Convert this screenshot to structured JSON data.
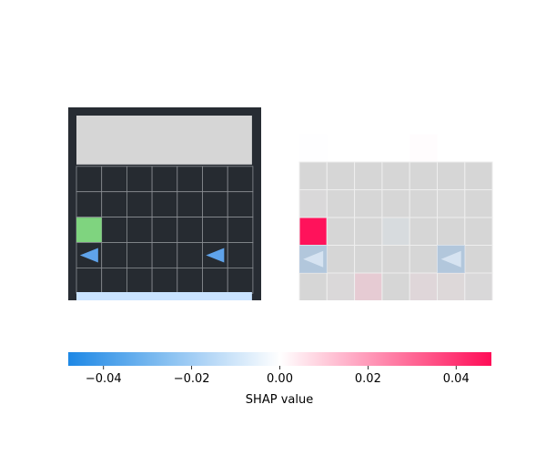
{
  "chart_data": [
    {
      "type": "image",
      "panel": "game-state",
      "grid": {
        "rows": 7,
        "cols": 7
      },
      "colors": {
        "frame": "#272c33",
        "cell": "#262b31",
        "grid_line": "#8a8e93",
        "top_bar": "#d6d6d6",
        "bottom_bar": "#c9e3ff",
        "agent": "#7fd47f",
        "arrow": "#5fa3ea"
      },
      "objects": [
        {
          "name": "agent",
          "icon": "green-square",
          "row": 4,
          "col": 0
        },
        {
          "name": "arrow",
          "icon": "left-arrow-icon",
          "row": 5,
          "col": 0
        },
        {
          "name": "arrow",
          "icon": "left-arrow-icon",
          "row": 5,
          "col": 5
        }
      ]
    },
    {
      "type": "heatmap",
      "panel": "shap-overlay",
      "grid": {
        "rows": 7,
        "cols": 7
      },
      "values": [
        [
          0.001,
          0.001,
          0.0005,
          0.0,
          -0.0005,
          0.0005,
          0.0005
        ],
        [
          -0.002,
          -0.0005,
          -0.001,
          -0.001,
          0.003,
          0.001,
          0.001
        ],
        [
          0.0,
          0.0,
          0.0,
          0.0,
          0.0,
          0.0,
          0.0
        ],
        [
          0.003,
          0.0,
          0.0,
          0.0,
          0.0,
          0.002,
          0.0
        ],
        [
          0.047,
          0.0,
          0.0,
          -0.008,
          0.0,
          0.0,
          0.0
        ],
        [
          -0.012,
          0.0,
          0.0,
          0.0,
          0.0,
          -0.012,
          0.0
        ],
        [
          0.0,
          0.004,
          0.014,
          0.0,
          0.008,
          0.006,
          0.003
        ]
      ],
      "colorbar": {
        "label": "SHAP value",
        "vmin": -0.048,
        "vmax": 0.048,
        "ticks": [
          -0.04,
          -0.02,
          0.0,
          0.02,
          0.04
        ],
        "tick_labels": [
          "−0.04",
          "−0.02",
          "0.00",
          "0.02",
          "0.04"
        ],
        "neg_color": "#1e88e5",
        "zero_color": "#ffffff",
        "pos_color": "#ff0d57"
      }
    }
  ]
}
